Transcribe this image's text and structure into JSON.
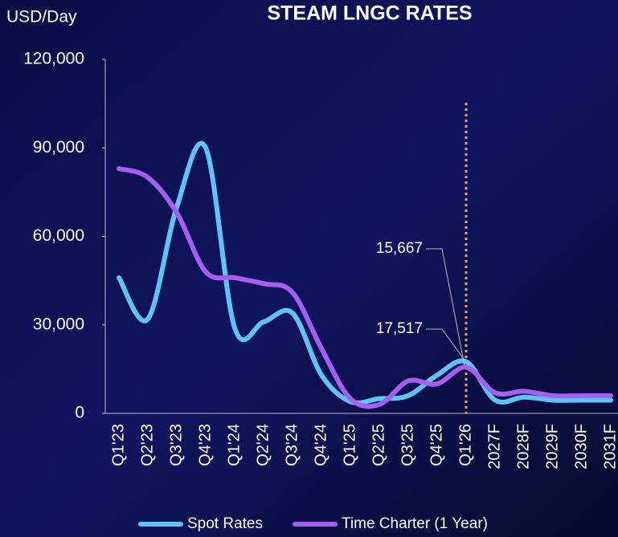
{
  "chart_data": {
    "type": "line",
    "title": "STEAM LNGC RATES",
    "y_label": "USD/Day",
    "categories": [
      "Q1'23",
      "Q2'23",
      "Q3'23",
      "Q4'23",
      "Q1'24",
      "Q2'24",
      "Q3'24",
      "Q4'24",
      "Q1'25",
      "Q2'25",
      "Q3'25",
      "Q4'25",
      "Q1'26",
      "2027F",
      "2028F",
      "2029F",
      "2030F",
      "2031F"
    ],
    "series": [
      {
        "name": "Spot Rates",
        "color": "#5ec4f7",
        "values": [
          46000,
          32000,
          70000,
          90000,
          29000,
          31000,
          34000,
          13000,
          4000,
          5000,
          6000,
          13000,
          17517,
          4500,
          5500,
          4500,
          4500,
          4500
        ],
        "value_labels": [
          null,
          null,
          null,
          null,
          null,
          null,
          null,
          null,
          null,
          null,
          null,
          null,
          "17,517",
          null,
          null,
          null,
          null,
          null
        ]
      },
      {
        "name": "Time Charter (1 Year)",
        "color": "#a45ff0",
        "values": [
          83000,
          80000,
          68000,
          48000,
          46000,
          44000,
          41000,
          22000,
          5000,
          3000,
          11000,
          10000,
          15667,
          7000,
          7500,
          6000,
          6000,
          6000
        ],
        "value_labels": [
          null,
          null,
          null,
          null,
          null,
          null,
          null,
          null,
          null,
          null,
          null,
          null,
          "15,667",
          null,
          null,
          null,
          null,
          null
        ]
      }
    ],
    "ylim": [
      0,
      120000
    ],
    "yticks": [
      0,
      {
        "value": 30000,
        "label": "30,000"
      },
      {
        "value": 60000,
        "label": "60,000"
      },
      {
        "value": 90000,
        "label": "90,000"
      },
      {
        "value": 120000,
        "label": "120,000"
      }
    ],
    "legend": "bottom"
  }
}
